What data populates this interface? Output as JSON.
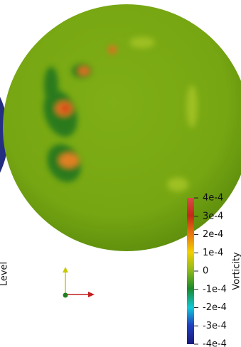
{
  "left_label": "Level",
  "colorbar": {
    "title": "Vorticity",
    "ticks": [
      "4e-4",
      "3e-4",
      "2e-4",
      "1e-4",
      "0",
      "-1e-4",
      "-2e-4",
      "-3e-4",
      "-4e-4"
    ]
  }
}
